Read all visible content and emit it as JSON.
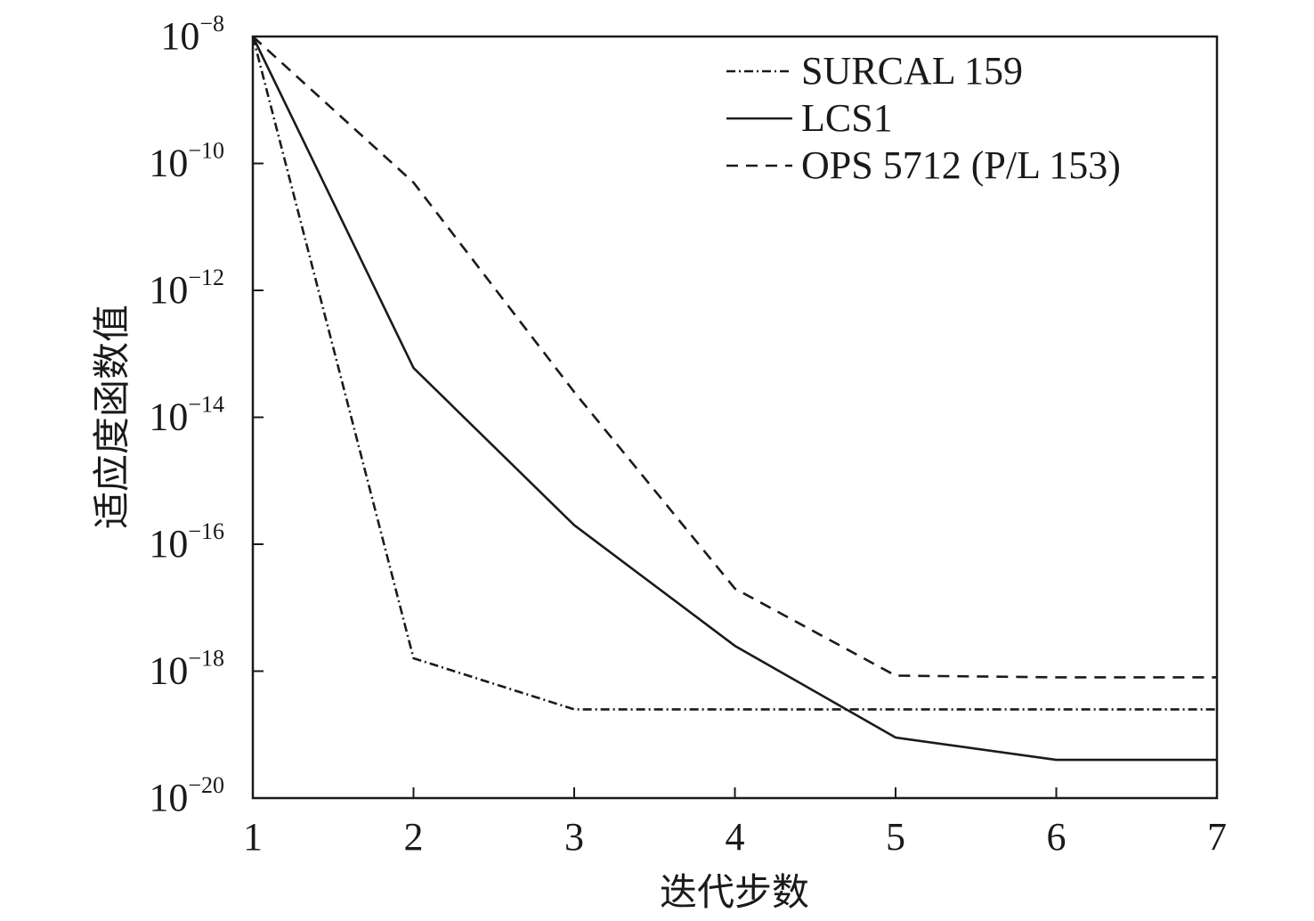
{
  "chart_data": {
    "type": "line",
    "xlabel": "迭代步数",
    "ylabel": "适应度函数值",
    "x": [
      1,
      2,
      3,
      4,
      5,
      6,
      7
    ],
    "xlim": [
      1,
      7
    ],
    "xticks": [
      "1",
      "2",
      "3",
      "4",
      "5",
      "6",
      "7"
    ],
    "yscale": "log",
    "ylim": [
      1e-20,
      1e-08
    ],
    "ytick_base": "10",
    "ytick_exponents": [
      "−8",
      "−10",
      "−12",
      "−14",
      "−16",
      "−18",
      "−20"
    ],
    "grid": false,
    "legend_position": "top-right",
    "series": [
      {
        "name": "SURCAL 159",
        "style": "dash-dot",
        "color": "#1a1a1a",
        "values": [
          1e-08,
          1.6e-18,
          2.5e-19,
          2.5e-19,
          2.5e-19,
          2.5e-19,
          2.5e-19
        ]
      },
      {
        "name": "LCS1",
        "style": "solid",
        "color": "#1a1a1a",
        "values": [
          1e-08,
          6e-14,
          2e-16,
          2.5e-18,
          9e-20,
          4e-20,
          4e-20
        ]
      },
      {
        "name": "OPS 5712 (P/L 153)",
        "style": "dashed",
        "color": "#1a1a1a",
        "values": [
          1e-08,
          5e-11,
          2.5e-14,
          2e-17,
          8.5e-19,
          8e-19,
          8e-19
        ]
      }
    ]
  }
}
